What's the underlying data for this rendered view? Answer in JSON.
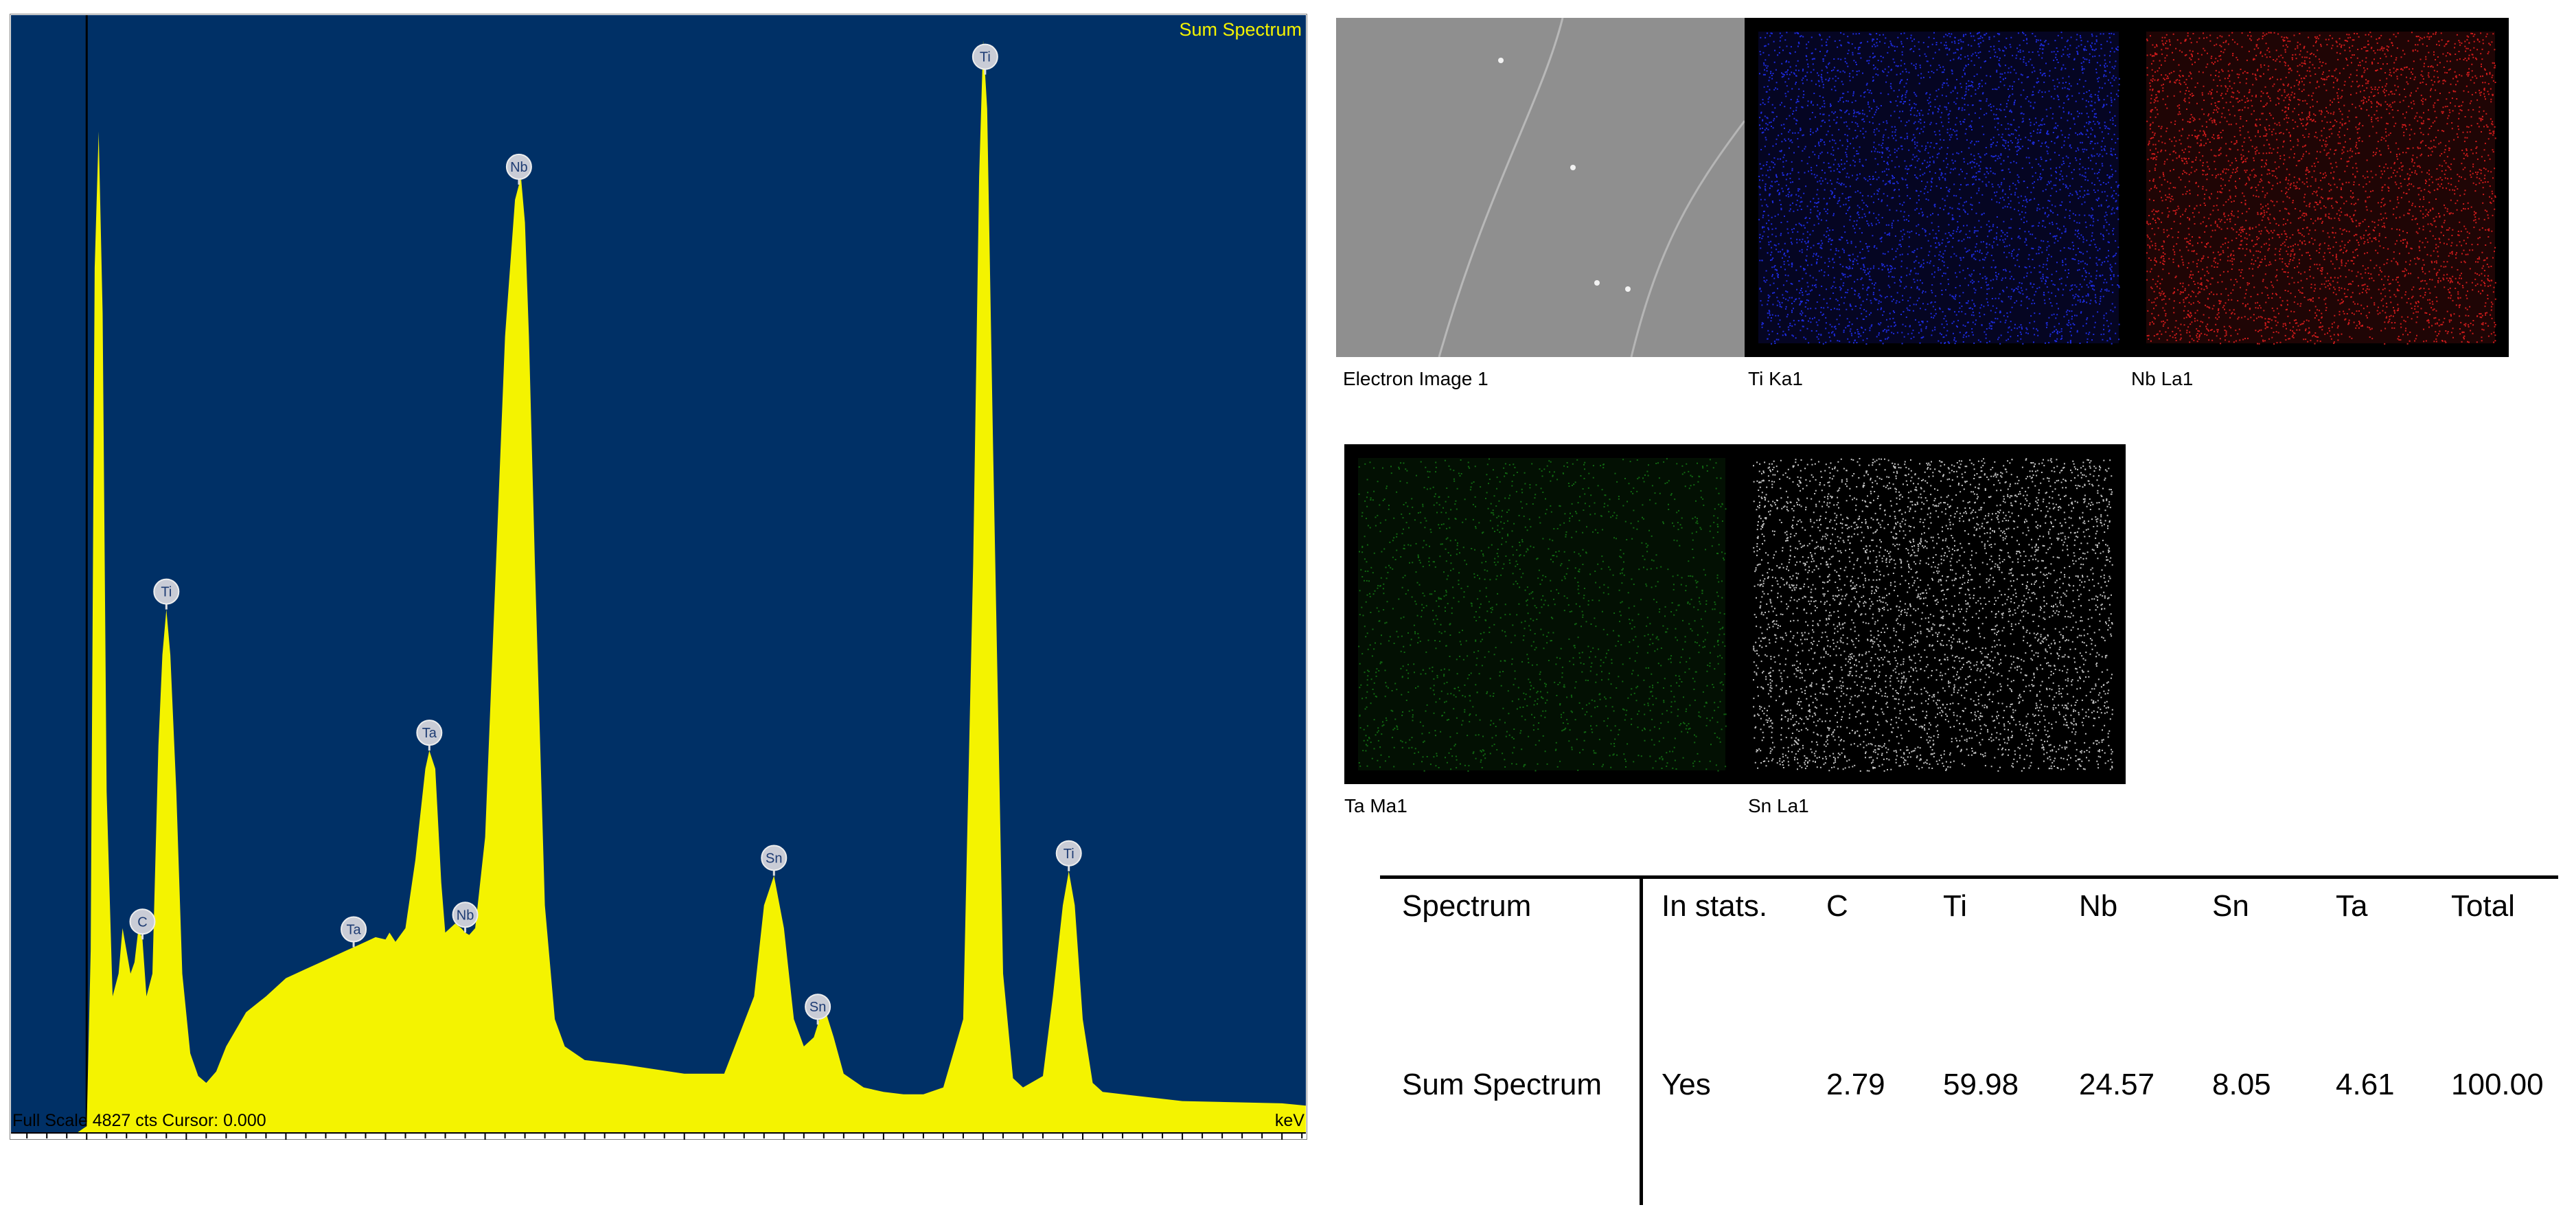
{
  "spectrum": {
    "title": "Sum Spectrum",
    "status_left": "Full Scale 4827 cts Cursor: 0.000",
    "unit_label": "keV",
    "background_color": "#003066",
    "fill_color": "#f4f300",
    "x_ticks": [
      "0",
      "0.5",
      "1",
      "1.5",
      "2",
      "2.5",
      "3",
      "3.5",
      "4",
      "4.5",
      "5",
      "5.5",
      "6"
    ],
    "xlim": [
      -0.38,
      6.12
    ],
    "full_scale_cts": 4827
  },
  "chart_data": {
    "type": "area",
    "xlabel": "keV",
    "xlim": [
      -0.38,
      6.12
    ],
    "ylim": [
      0,
      4827
    ],
    "x": [
      -0.05,
      0.0,
      0.02,
      0.04,
      0.06,
      0.08,
      0.1,
      0.13,
      0.16,
      0.18,
      0.2,
      0.22,
      0.24,
      0.26,
      0.28,
      0.3,
      0.33,
      0.36,
      0.38,
      0.4,
      0.42,
      0.45,
      0.48,
      0.52,
      0.56,
      0.6,
      0.65,
      0.7,
      0.8,
      0.9,
      1.0,
      1.1,
      1.2,
      1.3,
      1.35,
      1.4,
      1.45,
      1.5,
      1.52,
      1.55,
      1.6,
      1.65,
      1.7,
      1.72,
      1.75,
      1.78,
      1.8,
      1.85,
      1.88,
      1.9,
      1.92,
      1.95,
      2.0,
      2.05,
      2.1,
      2.15,
      2.18,
      2.2,
      2.22,
      2.25,
      2.3,
      2.35,
      2.4,
      2.5,
      2.7,
      3.0,
      3.2,
      3.35,
      3.4,
      3.45,
      3.5,
      3.55,
      3.6,
      3.65,
      3.7,
      3.75,
      3.8,
      3.9,
      4.0,
      4.1,
      4.2,
      4.3,
      4.4,
      4.45,
      4.48,
      4.5,
      4.52,
      4.55,
      4.6,
      4.65,
      4.7,
      4.8,
      4.85,
      4.9,
      4.93,
      4.96,
      5.0,
      5.05,
      5.1,
      5.5,
      6.0,
      6.12
    ],
    "y": [
      0,
      30,
      800,
      3800,
      4400,
      3600,
      1500,
      600,
      700,
      900,
      800,
      700,
      750,
      900,
      850,
      600,
      700,
      1700,
      2100,
      2300,
      2100,
      1500,
      700,
      350,
      250,
      220,
      270,
      380,
      530,
      600,
      680,
      720,
      760,
      800,
      820,
      840,
      860,
      850,
      880,
      840,
      900,
      1200,
      1600,
      1680,
      1600,
      1100,
      880,
      920,
      900,
      880,
      870,
      900,
      1300,
      2400,
      3500,
      4100,
      4200,
      4000,
      3500,
      2500,
      1000,
      500,
      380,
      320,
      300,
      260,
      260,
      600,
      1000,
      1130,
      900,
      500,
      380,
      420,
      560,
      420,
      260,
      200,
      180,
      170,
      170,
      200,
      500,
      2500,
      4200,
      4800,
      4500,
      3000,
      700,
      240,
      200,
      250,
      600,
      1000,
      1150,
      1000,
      500,
      220,
      180,
      140,
      130,
      120
    ],
    "peak_labels": [
      {
        "label": "C",
        "x": 0.28
      },
      {
        "label": "Ti",
        "x": 0.4
      },
      {
        "label": "Ta",
        "x": 1.34
      },
      {
        "label": "Ta",
        "x": 1.72
      },
      {
        "label": "Nb",
        "x": 1.9
      },
      {
        "label": "Nb",
        "x": 2.17
      },
      {
        "label": "Sn",
        "x": 3.45
      },
      {
        "label": "Sn",
        "x": 3.67
      },
      {
        "label": "Ti",
        "x": 4.51
      },
      {
        "label": "Ti",
        "x": 4.93
      }
    ]
  },
  "maps": [
    {
      "name": "electron-image",
      "caption": "Electron Image 1",
      "color": "#9a9a9a",
      "bg": "#8f8f8f"
    },
    {
      "name": "ti-map",
      "caption": "Ti Ka1",
      "color": "#2233ff",
      "bg": "#050522"
    },
    {
      "name": "nb-map",
      "caption": "Nb La1",
      "color": "#ee2020",
      "bg": "#1f0505"
    },
    {
      "name": "ta-map",
      "caption": "Ta Ma1",
      "color": "#1aa31a",
      "bg": "#031003"
    },
    {
      "name": "sn-map",
      "caption": "Sn La1",
      "color": "#e8e8e8",
      "bg": "#000000"
    }
  ],
  "table": {
    "headers": [
      "Spectrum",
      "In stats.",
      "C",
      "Ti",
      "Nb",
      "Sn",
      "Ta",
      "Total"
    ],
    "rows": [
      [
        "Sum Spectrum",
        "Yes",
        "2.79",
        "59.98",
        "24.57",
        "8.05",
        "4.61",
        "100.00"
      ]
    ]
  }
}
